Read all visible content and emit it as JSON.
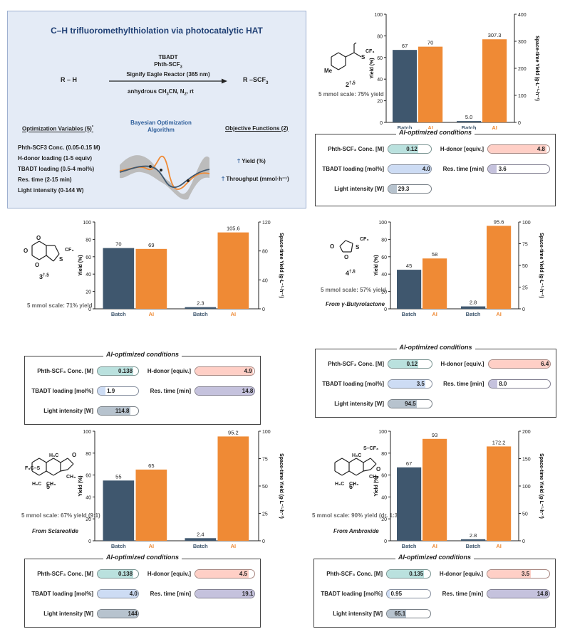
{
  "top_panel": {
    "title": "C–H trifluoromethylthiolation via photocatalytic HAT",
    "reaction": {
      "reactant": "R – H",
      "product": "R –SCF",
      "product_sub": "3",
      "conditions": [
        "TBADT",
        "Phth-SCF",
        "Signify Eagle Reactor (365 nm)"
      ],
      "conditions_sub": "3",
      "below": "anhydrous CH",
      "below_rest": "CN, N",
      "below_tail": ", rt"
    },
    "variables_title": "Optimization Variables (5)",
    "variables_mark": "*",
    "variables": [
      "Phth-SCF3 Conc. (0.05-0.15 M)",
      "H-donor loading (1-5 equiv)",
      "TBADT loading (0.5-4 mol%)",
      "Res. time (2-15 min)",
      "Light intensity (0-144 W)"
    ],
    "algorithm_title": "Bayesian Optimization Algorithm",
    "algorithm_line1": "Bayesian Optimization",
    "algorithm_line2": "Algorithm",
    "objectives_title": "Objective Functions (2)",
    "objectives": [
      "Yield (%)",
      "Throughput (mmol·h⁻¹)"
    ]
  },
  "cond_labels": {
    "title": "AI-optimized conditions",
    "conc": "Phth-SCF₃ Conc. [M]",
    "hdonor": "H-donor [equiv.]",
    "tbadt": "TBADT loading [mol%]",
    "res": "Res. time [min]",
    "light": "Light intensity [W]"
  },
  "colors": {
    "batch": "#3f576e",
    "ai": "#ef8a35",
    "conc": "#bfe0dd",
    "hdonor": "#fcd1c9",
    "tbadt": "#cfdcf0",
    "res": "#c5c2d9",
    "light": "#b9c3cc"
  },
  "chart_data": [
    {
      "type": "bar",
      "compound": "2",
      "marks": "†,§",
      "caption": "5 mmol scale: 75% yield",
      "source": "",
      "categories": [
        "Batch",
        "AI"
      ],
      "series": [
        {
          "values": [
            67,
            70
          ]
        },
        {
          "values": [
            5.0,
            307.3
          ]
        }
      ],
      "value_labels": [
        [
          "67",
          "70"
        ],
        [
          "5.0",
          "307.3"
        ]
      ],
      "ylabel": "Yield (%)",
      "y2label": "Space-time Yield (g·L⁻¹·h⁻¹)",
      "ylim": [
        0,
        100
      ],
      "y2lim": [
        0,
        400
      ],
      "yticks": [
        0,
        20,
        40,
        60,
        80,
        100
      ],
      "y2ticks": [
        0,
        100,
        200,
        300,
        400
      ],
      "conditions": {
        "conc": "0.12",
        "hdonor": "4.8",
        "tbadt": "4.0",
        "res": "3.6",
        "light": "29.3"
      },
      "fractions": {
        "conc": 0.7,
        "hdonor": 0.95,
        "tbadt": 1.0,
        "res": 0.14,
        "light": 0.2
      }
    },
    {
      "type": "bar",
      "compound": "3",
      "marks": "†,§",
      "caption": "5 mmol scale: 71% yield",
      "source": "",
      "categories": [
        "Batch",
        "AI"
      ],
      "series": [
        {
          "values": [
            70,
            69
          ]
        },
        {
          "values": [
            2.3,
            105.6
          ]
        }
      ],
      "value_labels": [
        [
          "70",
          "69"
        ],
        [
          "2.3",
          "105.6"
        ]
      ],
      "ylabel": "Yield (%)",
      "y2label": "Space-time Yield (g·L⁻¹·h⁻¹)",
      "ylim": [
        0,
        100
      ],
      "y2lim": [
        0,
        120
      ],
      "yticks": [
        0,
        20,
        40,
        60,
        80,
        100
      ],
      "y2ticks": [
        0,
        40,
        80,
        120
      ],
      "conditions": {
        "conc": "0.138",
        "hdonor": "4.9",
        "tbadt": "1.9",
        "res": "14.8",
        "light": "114.8"
      },
      "fractions": {
        "conc": 0.88,
        "hdonor": 0.98,
        "tbadt": 0.2,
        "res": 1.0,
        "light": 0.8
      }
    },
    {
      "type": "bar",
      "compound": "4",
      "marks": "†,§",
      "caption": "5 mmol scale: 57% yield",
      "source": "From γ-Butyrolactone",
      "categories": [
        "Batch",
        "AI"
      ],
      "series": [
        {
          "values": [
            45,
            58
          ]
        },
        {
          "values": [
            2.8,
            95.6
          ]
        }
      ],
      "value_labels": [
        [
          "45",
          "58"
        ],
        [
          "2.8",
          "95.6"
        ]
      ],
      "ylabel": "Yield (%)",
      "y2label": "Space-time Yield (g·L⁻¹·h⁻¹)",
      "ylim": [
        0,
        100
      ],
      "y2lim": [
        0,
        100
      ],
      "yticks": [
        0,
        20,
        40,
        60,
        80,
        100
      ],
      "y2ticks": [
        0,
        25,
        50,
        75,
        100
      ],
      "conditions": {
        "conc": "0.12",
        "hdonor": "6.4",
        "tbadt": "3.5",
        "res": "8.0",
        "light": "94.5"
      },
      "fractions": {
        "conc": 0.7,
        "hdonor": 1.0,
        "tbadt": 0.86,
        "res": 0.14,
        "light": 0.66
      }
    },
    {
      "type": "bar",
      "compound": "5",
      "marks": "†",
      "caption": "5 mmol scale: 67% yield (9:1)",
      "source": "From Sclareolide",
      "categories": [
        "Batch",
        "AI"
      ],
      "series": [
        {
          "values": [
            55,
            65
          ]
        },
        {
          "values": [
            2.4,
            95.2
          ]
        }
      ],
      "value_labels": [
        [
          "55",
          "65"
        ],
        [
          "2.4",
          "95.2"
        ]
      ],
      "ylabel": "Yield (%)",
      "y2label": "Space-time Yield (g·L⁻¹·h⁻¹)",
      "ylim": [
        0,
        100
      ],
      "y2lim": [
        0,
        100
      ],
      "yticks": [
        0,
        20,
        40,
        60,
        80,
        100
      ],
      "y2ticks": [
        0,
        25,
        50,
        75,
        100
      ],
      "conditions": {
        "conc": "0.138",
        "hdonor": "4.5",
        "tbadt": "4.0",
        "res": "19.1",
        "light": "144"
      },
      "fractions": {
        "conc": 0.88,
        "hdonor": 0.9,
        "tbadt": 1.0,
        "res": 1.0,
        "light": 1.0
      }
    },
    {
      "type": "bar",
      "compound": "6",
      "marks": "†",
      "caption": "5 mmol scale: 90% yield (dr. 1:3)",
      "source": "From Ambroxide",
      "categories": [
        "Batch",
        "AI"
      ],
      "series": [
        {
          "values": [
            67,
            93
          ]
        },
        {
          "values": [
            2.8,
            172.2
          ]
        }
      ],
      "value_labels": [
        [
          "67",
          "93"
        ],
        [
          "2.8",
          "172.2"
        ]
      ],
      "ylabel": "Yield (%)",
      "y2label": "Space-time Yield (g·L⁻¹·h⁻¹)",
      "ylim": [
        0,
        100
      ],
      "y2lim": [
        0,
        200
      ],
      "yticks": [
        0,
        20,
        40,
        60,
        80,
        100
      ],
      "y2ticks": [
        0,
        50,
        100,
        150,
        200
      ],
      "conditions": {
        "conc": "0.135",
        "hdonor": "3.5",
        "tbadt": "0.95",
        "res": "14.8",
        "light": "65.1"
      },
      "fractions": {
        "conc": 0.86,
        "hdonor": 0.7,
        "tbadt": 0.06,
        "res": 1.0,
        "light": 0.45
      }
    }
  ]
}
